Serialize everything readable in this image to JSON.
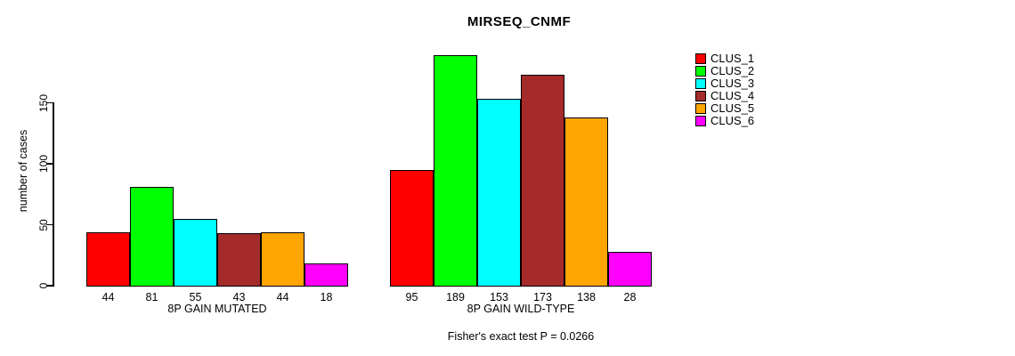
{
  "chart_data": {
    "type": "bar",
    "title": "MIRSEQ_CNMF",
    "ylabel": "number of cases",
    "yticks": [
      0,
      50,
      100,
      150
    ],
    "ylim": [
      0,
      193
    ],
    "grid": false,
    "legend_position": "right",
    "series_labels": [
      "CLUS_1",
      "CLUS_2",
      "CLUS_3",
      "CLUS_4",
      "CLUS_5",
      "CLUS_6"
    ],
    "colors": [
      "#ff0000",
      "#00ff00",
      "#00ffff",
      "#a52a2a",
      "#ffa500",
      "#ff00ff"
    ],
    "groups": [
      {
        "label": "8P GAIN MUTATED",
        "values": [
          44,
          81,
          55,
          43,
          44,
          18
        ]
      },
      {
        "label": "8P GAIN WILD-TYPE",
        "values": [
          95,
          189,
          153,
          173,
          138,
          28
        ]
      }
    ],
    "annotation": "Fisher's exact test P = 0.0266"
  }
}
